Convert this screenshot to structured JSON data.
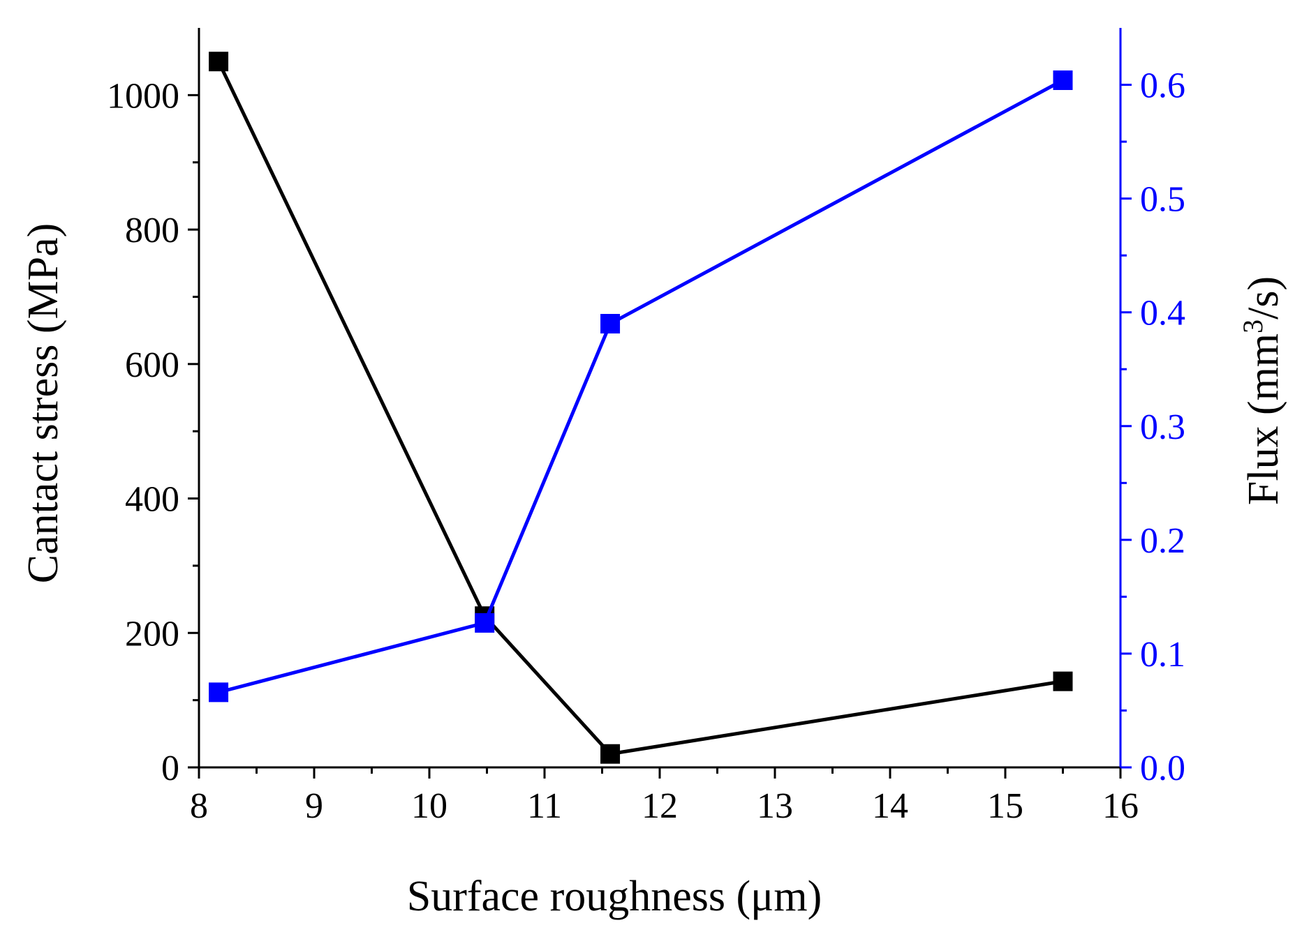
{
  "chart_data": {
    "type": "line",
    "xlabel": "Surface roughness (μm)",
    "ylabel_left": "Cantact stress (MPa)",
    "ylabel_right": {
      "prefix": "Flux (mm",
      "sup": "3",
      "suffix": "/s)"
    },
    "xlim": [
      8,
      16
    ],
    "ylim_left": [
      0,
      1100
    ],
    "ylim_right": [
      0,
      0.65
    ],
    "x_ticks": [
      8,
      9,
      10,
      11,
      12,
      13,
      14,
      15,
      16
    ],
    "x_tick_labels": [
      "8",
      "9",
      "10",
      "11",
      "12",
      "13",
      "14",
      "15",
      "16"
    ],
    "y_left_ticks": [
      0,
      200,
      400,
      600,
      800,
      1000
    ],
    "y_left_tick_labels": [
      "0",
      "200",
      "400",
      "600",
      "800",
      "1000"
    ],
    "y_right_ticks": [
      0.0,
      0.1,
      0.2,
      0.3,
      0.4,
      0.5,
      0.6
    ],
    "y_right_tick_labels": [
      "0.0",
      "0.1",
      "0.2",
      "0.3",
      "0.4",
      "0.5",
      "0.6"
    ],
    "series": [
      {
        "name": "Contact stress",
        "axis": "left",
        "color": "#000000",
        "marker": "square",
        "x": [
          8.17,
          10.48,
          11.57,
          15.5
        ],
        "values": [
          1050,
          225,
          20,
          128
        ]
      },
      {
        "name": "Flux",
        "axis": "right",
        "color": "#0000ff",
        "marker": "square",
        "x": [
          8.17,
          10.48,
          11.57,
          15.5
        ],
        "values": [
          0.066,
          0.127,
          0.39,
          0.604
        ]
      }
    ],
    "colors": {
      "left_axis": "#000000",
      "right_axis": "#0000ff"
    }
  }
}
